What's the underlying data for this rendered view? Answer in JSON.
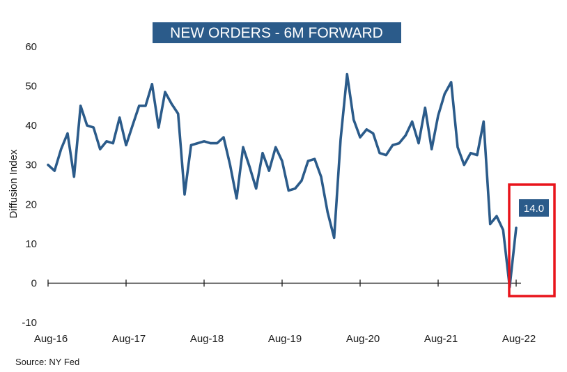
{
  "chart_data": {
    "type": "line",
    "title": "NEW ORDERS - 6M FORWARD",
    "ylabel": "Diffusion Index",
    "xlabel": "",
    "ylim": [
      -10,
      60
    ],
    "yticks": [
      -10,
      0,
      10,
      20,
      30,
      40,
      50,
      60
    ],
    "x_tick_labels": [
      "Aug-16",
      "Aug-17",
      "Aug-18",
      "Aug-19",
      "Aug-20",
      "Aug-21",
      "Aug-22"
    ],
    "x_start": "Aug-16",
    "x_end": "Aug-22",
    "grid": false,
    "series": [
      {
        "color": "#2b5b8a",
        "x": [
          "Aug-16",
          "Sep-16",
          "Oct-16",
          "Nov-16",
          "Dec-16",
          "Jan-17",
          "Feb-17",
          "Mar-17",
          "Apr-17",
          "May-17",
          "Jun-17",
          "Jul-17",
          "Aug-17",
          "Sep-17",
          "Oct-17",
          "Nov-17",
          "Dec-17",
          "Jan-18",
          "Feb-18",
          "Mar-18",
          "Apr-18",
          "May-18",
          "Jun-18",
          "Jul-18",
          "Aug-18",
          "Sep-18",
          "Oct-18",
          "Nov-18",
          "Dec-18",
          "Jan-19",
          "Feb-19",
          "Mar-19",
          "Apr-19",
          "May-19",
          "Jun-19",
          "Jul-19",
          "Aug-19",
          "Sep-19",
          "Oct-19",
          "Nov-19",
          "Dec-19",
          "Jan-20",
          "Feb-20",
          "Mar-20",
          "Apr-20",
          "May-20",
          "Jun-20",
          "Jul-20",
          "Aug-20",
          "Sep-20",
          "Oct-20",
          "Nov-20",
          "Dec-20",
          "Jan-21",
          "Feb-21",
          "Mar-21",
          "Apr-21",
          "May-21",
          "Jun-21",
          "Jul-21",
          "Aug-21",
          "Sep-21",
          "Oct-21",
          "Nov-21",
          "Dec-21",
          "Jan-22",
          "Feb-22",
          "Mar-22",
          "Apr-22",
          "May-22",
          "Jun-22",
          "Jul-22",
          "Aug-22"
        ],
        "values": [
          30,
          28.5,
          34,
          38,
          27,
          45,
          40,
          39.5,
          34,
          36,
          35.5,
          42,
          35,
          40,
          45,
          45,
          50.5,
          39.5,
          48.5,
          45.5,
          43,
          22.5,
          35,
          35.5,
          36,
          35.5,
          35.5,
          37,
          30,
          21.5,
          34.5,
          29.5,
          24,
          33,
          28.5,
          34.5,
          31,
          23.5,
          24,
          26,
          31,
          31.5,
          27,
          18,
          11.5,
          36.5,
          53,
          41.5,
          37,
          39,
          38,
          33,
          32.5,
          35,
          35.5,
          37.5,
          41,
          35.5,
          44.5,
          34,
          42.5,
          48,
          51,
          34.5,
          30,
          33,
          32.5,
          41,
          15,
          17,
          13.5,
          -1,
          14
        ]
      }
    ],
    "annotations": {
      "last_value_label": "14.0",
      "last_value_bg": "#2b5b8a",
      "highlight_box_color": "#e8141b"
    }
  },
  "footer": {
    "source": "Source: NY Fed"
  }
}
